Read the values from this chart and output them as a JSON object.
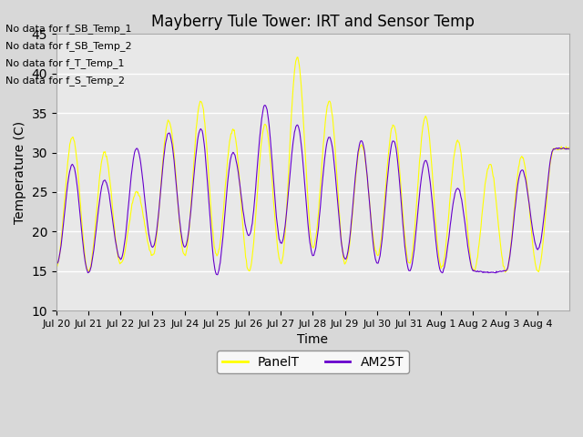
{
  "title": "Mayberry Tule Tower: IRT and Sensor Temp",
  "xlabel": "Time",
  "ylabel": "Temperature (C)",
  "ylim": [
    10,
    45
  ],
  "yticks": [
    10,
    15,
    20,
    25,
    30,
    35,
    40,
    45
  ],
  "fig_bg_color": "#d8d8d8",
  "plot_bg_color": "#e8e8e8",
  "grid_color": "white",
  "line1_color": "yellow",
  "line2_color": "#6600cc",
  "line1_label": "PanelT",
  "line2_label": "AM25T",
  "no_data_texts": [
    "No data for f_SB_Temp_1",
    "No data for f_SB_Temp_2",
    "No data for f_T_Temp_1",
    "No data for f_S_Temp_2"
  ],
  "x_tick_labels": [
    "Jul 20",
    "Jul 21",
    "Jul 22",
    "Jul 23",
    "Jul 24",
    "Jul 25",
    "Jul 26",
    "Jul 27",
    "Jul 28",
    "Jul 29",
    "Jul 30",
    "Jul 31",
    "Aug 1",
    "Aug 2",
    "Aug 3",
    "Aug 4"
  ],
  "panelT_peaks": [
    15.5,
    32,
    15,
    30,
    16,
    25,
    17,
    34,
    17,
    36.5,
    17,
    33,
    15,
    33.5,
    16,
    42,
    18,
    36.5,
    16,
    31,
    17,
    33.5,
    16,
    34.5,
    15.5,
    31.5,
    15,
    28.5,
    15,
    29.5,
    15,
    30.5
  ],
  "am25T_peaks": [
    15.8,
    28.5,
    14.8,
    26.5,
    16.5,
    30.5,
    18,
    32.5,
    18,
    33,
    14.5,
    30,
    19.5,
    36,
    18.5,
    33.5,
    17,
    32,
    16.5,
    31.5,
    16,
    31.5,
    15,
    29,
    14.8,
    25.5,
    15,
    14.8,
    15,
    27.8,
    17.8,
    30.5
  ]
}
